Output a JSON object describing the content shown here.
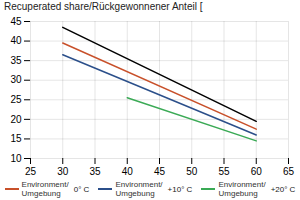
{
  "chart_data": {
    "type": "line",
    "ylabel": "Recuperated share/Rückgewonnener Anteil [",
    "xlim": [
      25,
      65
    ],
    "ylim": [
      10,
      45
    ],
    "xticks": [
      25,
      30,
      35,
      40,
      45,
      50,
      55,
      60,
      65
    ],
    "yticks": [
      10,
      15,
      20,
      25,
      30,
      35,
      40,
      45
    ],
    "grid": true,
    "legend": "bottom",
    "series": [
      {
        "color": "#000000",
        "x": [
          30,
          60
        ],
        "values": [
          43.5,
          19.5
        ]
      },
      {
        "name": "Environment/\nUmgebung",
        "label": "0° C",
        "color": "#c8502a",
        "x": [
          30,
          60
        ],
        "values": [
          39.5,
          17.5
        ]
      },
      {
        "name": "Environment/\nUmgebung",
        "label": "+10° C",
        "color": "#2b4f8a",
        "x": [
          30,
          60
        ],
        "values": [
          36.5,
          16.0
        ]
      },
      {
        "name": "Environment/\nUmgebung",
        "label": "+20° C",
        "color": "#3aaa55",
        "x": [
          40,
          60
        ],
        "values": [
          25.5,
          14.5
        ]
      }
    ]
  }
}
